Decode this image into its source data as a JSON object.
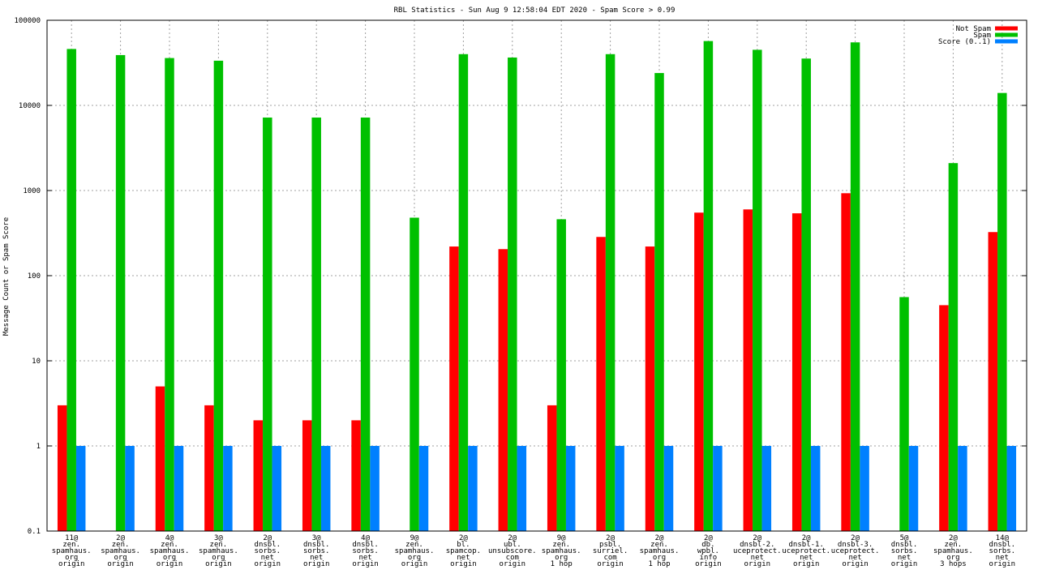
{
  "chart_data": {
    "type": "bar",
    "title": "RBL Statistics - Sun Aug  9 12:58:04 EDT 2020 - Spam Score > 0.99",
    "ylabel": "Message Count or Spam Score",
    "xlabel": "",
    "yscale": "log",
    "ylim": [
      0.1,
      100000
    ],
    "yticks": [
      "0.1",
      "1",
      "10",
      "100",
      "1000",
      "10000",
      "100000"
    ],
    "grid": true,
    "legend_position": "top-right",
    "categories": [
      [
        "11@",
        "zen.",
        "spamhaus.",
        "org",
        "origin"
      ],
      [
        "2@",
        "zen.",
        "spamhaus.",
        "org",
        "origin"
      ],
      [
        "4@",
        "zen.",
        "spamhaus.",
        "org",
        "origin"
      ],
      [
        "3@",
        "zen.",
        "spamhaus.",
        "org",
        "origin"
      ],
      [
        "2@",
        "dnsbl.",
        "sorbs.",
        "net",
        "origin"
      ],
      [
        "3@",
        "dnsbl.",
        "sorbs.",
        "net",
        "origin"
      ],
      [
        "4@",
        "dnsbl.",
        "sorbs.",
        "net",
        "origin"
      ],
      [
        "9@",
        "zen.",
        "spamhaus.",
        "org",
        "origin"
      ],
      [
        "2@",
        "bl.",
        "spamcop.",
        "net",
        "origin"
      ],
      [
        "2@",
        "ubl.",
        "unsubscore.",
        "com",
        "origin"
      ],
      [
        "9@",
        "zen.",
        "spamhaus.",
        "org",
        "1 hop"
      ],
      [
        "2@",
        "psbl.",
        "surriel.",
        "com",
        "origin"
      ],
      [
        "2@",
        "zen.",
        "spamhaus.",
        "org",
        "1 hop"
      ],
      [
        "2@",
        "db.",
        "wpbl.",
        "info",
        "origin"
      ],
      [
        "2@",
        "dnsbl-2.",
        "uceprotect.",
        "net",
        "origin"
      ],
      [
        "2@",
        "dnsbl-1.",
        "uceprotect.",
        "net",
        "origin"
      ],
      [
        "2@",
        "dnsbl-3.",
        "uceprotect.",
        "net",
        "origin"
      ],
      [
        "5@",
        "dnsbl.",
        "sorbs.",
        "net",
        "origin"
      ],
      [
        "2@",
        "zen.",
        "spamhaus.",
        "org",
        "3 hops"
      ],
      [
        "14@",
        "dnsbl.",
        "sorbs.",
        "net",
        "origin"
      ]
    ],
    "series": [
      {
        "name": "Not Spam",
        "color": "#ff0000",
        "values": [
          3,
          null,
          5,
          3,
          2,
          2,
          2,
          null,
          220,
          205,
          3,
          285,
          220,
          550,
          600,
          540,
          930,
          null,
          45,
          325
        ]
      },
      {
        "name": "Spam",
        "color": "#00c000",
        "values": [
          46000,
          39000,
          36000,
          33500,
          7200,
          7200,
          7200,
          480,
          40000,
          36500,
          460,
          40000,
          24000,
          57000,
          45000,
          35500,
          55000,
          56,
          2100,
          14000
        ]
      },
      {
        "name": "Score (0..1)",
        "color": "#0080ff",
        "values": [
          1,
          1,
          1,
          1,
          1,
          1,
          1,
          1,
          1,
          1,
          1,
          1,
          1,
          1,
          1,
          1,
          1,
          1,
          1,
          1
        ]
      }
    ]
  }
}
